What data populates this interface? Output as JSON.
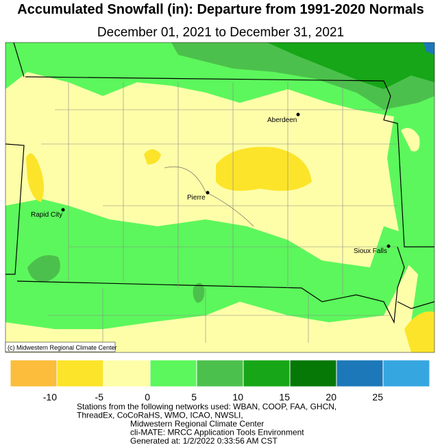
{
  "header": {
    "title": "Accumulated Snowfall (in): Departure from 1991-2020 Normals",
    "subtitle": "December 01, 2021 to December 31, 2021"
  },
  "map": {
    "cities": [
      "Aberdeen",
      "Pierre",
      "Rapid City",
      "Sioux Falls"
    ],
    "credit": "(c) Midwestern Regional Climate Center"
  },
  "legend": {
    "colors": [
      "#fbbd3b",
      "#fce42a",
      "#fefea9",
      "#5cf75c",
      "#4cc04c",
      "#17a617",
      "#067806",
      "#1c78b8",
      "#36a6e0"
    ],
    "ticks": [
      -10,
      -5,
      0,
      5,
      10,
      15,
      20,
      25
    ]
  },
  "footer": {
    "lines": [
      "Stations from the following networks used: WBAN, COOP, FAA, GHCN,",
      "ThreadEx, CoCoRaHS, WMO, ICAO, NWSLI,",
      "Midwestern Regional Climate Center",
      "cli-MATE: MRCC Application Tools Environment",
      "Generated at: 1/2/2022 0:33:56 AM CST"
    ]
  }
}
